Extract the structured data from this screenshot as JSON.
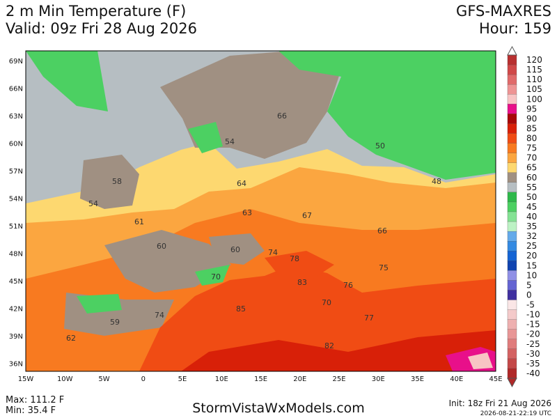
{
  "header": {
    "title": "2 m Min Temperature (F)",
    "valid": "Valid: 09z Fri 28 Aug 2026",
    "model": "GFS-MAXRES",
    "hour": "Hour: 159"
  },
  "lat_labels": [
    "69N",
    "66N",
    "63N",
    "60N",
    "57N",
    "54N",
    "51N",
    "48N",
    "45N",
    "42N",
    "39N",
    "36N"
  ],
  "lon_labels": [
    "15W",
    "10W",
    "5W",
    "0",
    "5E",
    "10E",
    "15E",
    "20E",
    "25E",
    "30E",
    "35E",
    "40E",
    "45E"
  ],
  "map_labels": [
    "66",
    "54",
    "50",
    "48",
    "58",
    "64",
    "54",
    "63",
    "67",
    "61",
    "66",
    "60",
    "60",
    "74",
    "78",
    "75",
    "70",
    "83",
    "76",
    "70",
    "85",
    "74",
    "77",
    "59",
    "62",
    "82"
  ],
  "colorbar": [
    {
      "label": "120",
      "color": "#b83030"
    },
    {
      "label": "115",
      "color": "#d04848"
    },
    {
      "label": "110",
      "color": "#e06a6a"
    },
    {
      "label": "105",
      "color": "#ee9494"
    },
    {
      "label": "100",
      "color": "#f8c4c4"
    },
    {
      "label": "95",
      "color": "#e8108a"
    },
    {
      "label": "90",
      "color": "#a80808"
    },
    {
      "label": "85",
      "color": "#d82008"
    },
    {
      "label": "80",
      "color": "#f04c14"
    },
    {
      "label": "75",
      "color": "#f87a20"
    },
    {
      "label": "70",
      "color": "#fba640"
    },
    {
      "label": "65",
      "color": "#fdd870"
    },
    {
      "label": "60",
      "color": "#a09082"
    },
    {
      "label": "55",
      "color": "#b6bec2"
    },
    {
      "label": "50",
      "color": "#2eb84a"
    },
    {
      "label": "45",
      "color": "#4cd062"
    },
    {
      "label": "40",
      "color": "#84e294"
    },
    {
      "label": "35",
      "color": "#bcf2c4"
    },
    {
      "label": "32",
      "color": "#64aaea"
    },
    {
      "label": "25",
      "color": "#348ae2"
    },
    {
      "label": "20",
      "color": "#1464d4"
    },
    {
      "label": "15",
      "color": "#1044b0"
    },
    {
      "label": "10",
      "color": "#9090e6"
    },
    {
      "label": "5",
      "color": "#6464d2"
    },
    {
      "label": "0",
      "color": "#4030a0"
    },
    {
      "label": "-5",
      "color": "#fae6e6"
    },
    {
      "label": "-10",
      "color": "#f4caca"
    },
    {
      "label": "-15",
      "color": "#eeb0b0"
    },
    {
      "label": "-20",
      "color": "#e89696"
    },
    {
      "label": "-25",
      "color": "#e07c7c"
    },
    {
      "label": "-30",
      "color": "#d46262"
    },
    {
      "label": "-35",
      "color": "#c44848"
    },
    {
      "label": "-40",
      "color": "#b02828"
    }
  ],
  "footer": {
    "max": "Max: 111.2 F",
    "min": "Min: 35.4 F",
    "site": "StormVistaWxModels.com",
    "init": "Init: 18z Fri 21 Aug 2026",
    "timestamp": "2026-08-21-22:19 UTC"
  }
}
